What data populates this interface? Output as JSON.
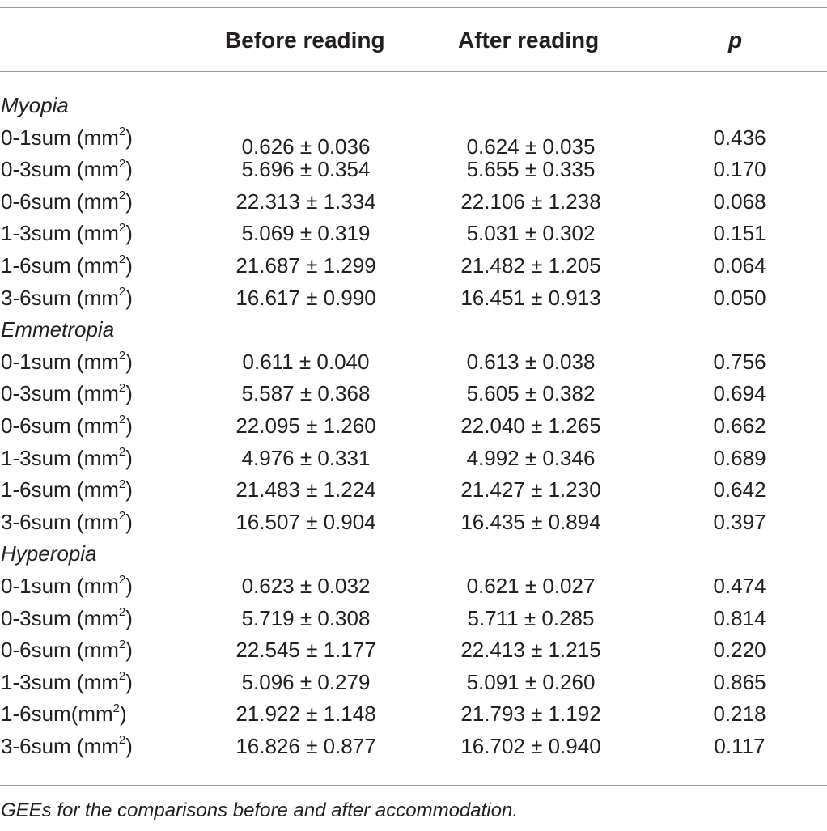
{
  "table": {
    "headers": {
      "col1": "Before reading",
      "col2": "After reading",
      "col3": "p"
    },
    "sections": [
      {
        "title": "Myopia",
        "rows": [
          {
            "label": "0-1sum (mm",
            "sup": "2",
            "close": ")",
            "before": "0.626 ± 0.036",
            "after": "0.624 ± 0.035",
            "p": "0.436"
          },
          {
            "label": "0-3sum (mm",
            "sup": "2",
            "close": ")",
            "before": "5.696 ± 0.354",
            "after": "5.655 ± 0.335",
            "p": "0.170"
          },
          {
            "label": "0-6sum (mm",
            "sup": "2",
            "close": ")",
            "before": "22.313 ± 1.334",
            "after": "22.106 ± 1.238",
            "p": "0.068"
          },
          {
            "label": "1-3sum (mm",
            "sup": "2",
            "close": ")",
            "before": "5.069 ± 0.319",
            "after": "5.031 ± 0.302",
            "p": "0.151"
          },
          {
            "label": "1-6sum (mm",
            "sup": "2",
            "close": ")",
            "before": "21.687 ± 1.299",
            "after": "21.482 ± 1.205",
            "p": "0.064"
          },
          {
            "label": "3-6sum (mm",
            "sup": "2",
            "close": ")",
            "before": "16.617 ± 0.990",
            "after": "16.451 ± 0.913",
            "p": "0.050"
          }
        ]
      },
      {
        "title": "Emmetropia",
        "rows": [
          {
            "label": "0-1sum (mm",
            "sup": "2",
            "close": ")",
            "before": "0.611 ± 0.040",
            "after": "0.613 ± 0.038",
            "p": "0.756"
          },
          {
            "label": "0-3sum (mm",
            "sup": "2",
            "close": ")",
            "before": "5.587 ± 0.368",
            "after": "5.605 ± 0.382",
            "p": "0.694"
          },
          {
            "label": "0-6sum (mm",
            "sup": "2",
            "close": ")",
            "before": "22.095 ± 1.260",
            "after": "22.040 ± 1.265",
            "p": "0.662"
          },
          {
            "label": "1-3sum (mm",
            "sup": "2",
            "close": ")",
            "before": "4.976 ± 0.331",
            "after": "4.992 ± 0.346",
            "p": "0.689"
          },
          {
            "label": "1-6sum (mm",
            "sup": "2",
            "close": ")",
            "before": "21.483 ± 1.224",
            "after": "21.427 ± 1.230",
            "p": "0.642"
          },
          {
            "label": "3-6sum (mm",
            "sup": "2",
            "close": ")",
            "before": "16.507 ± 0.904",
            "after": "16.435 ± 0.894",
            "p": "0.397"
          }
        ]
      },
      {
        "title": "Hyperopia",
        "rows": [
          {
            "label": "0-1sum (mm",
            "sup": "2",
            "close": ")",
            "before": "0.623 ± 0.032",
            "after": "0.621 ± 0.027",
            "p": "0.474"
          },
          {
            "label": "0-3sum (mm",
            "sup": "2",
            "close": ")",
            "before": "5.719 ± 0.308",
            "after": "5.711 ± 0.285",
            "p": "0.814"
          },
          {
            "label": "0-6sum (mm",
            "sup": "2",
            "close": ")",
            "before": "22.545 ± 1.177",
            "after": "22.413 ± 1.215",
            "p": "0.220"
          },
          {
            "label": "1-3sum (mm",
            "sup": "2",
            "close": ")",
            "before": "5.096 ± 0.279",
            "after": "5.091 ± 0.260",
            "p": "0.865"
          },
          {
            "label": "1-6sum(mm",
            "sup": "2",
            "close": ")",
            "before": "21.922 ± 1.148",
            "after": "21.793 ± 1.192",
            "p": "0.218"
          },
          {
            "label": "3-6sum (mm",
            "sup": "2",
            "close": ")",
            "before": "16.826 ± 0.877",
            "after": "16.702 ± 0.940",
            "p": "0.117"
          }
        ]
      }
    ]
  },
  "footnote": "GEEs for the comparisons before and after accommodation."
}
